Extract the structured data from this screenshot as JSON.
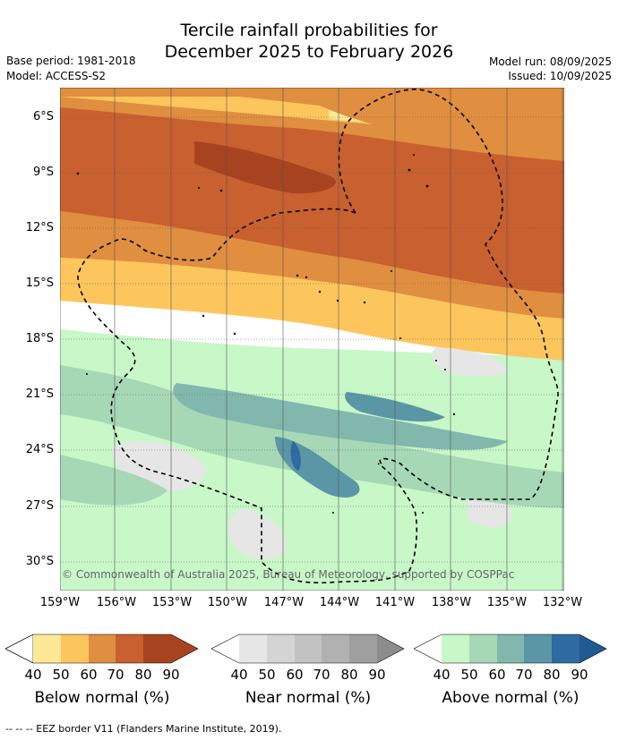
{
  "header": {
    "title_line1": "Tercile rainfall probabilities for",
    "title_line2": "December 2025 to February 2026",
    "base_period": "Base period: 1981-2018",
    "model": "Model: ACCESS-S2",
    "model_run": "Model run: 08/09/2025",
    "issued": "Issued: 10/09/2025"
  },
  "map": {
    "lat_labels": [
      "6°S",
      "9°S",
      "12°S",
      "15°S",
      "18°S",
      "21°S",
      "24°S",
      "27°S",
      "30°S"
    ],
    "lon_labels": [
      "159°W",
      "156°W",
      "153°W",
      "150°W",
      "147°W",
      "144°W",
      "141°W",
      "138°W",
      "135°W",
      "132°W"
    ],
    "copyright": "© Commonwealth of Australia 2025, Bureau of Meteorology, supported by COSPPac",
    "grid": "on"
  },
  "legend": {
    "ticks": [
      "40",
      "50",
      "60",
      "70",
      "80",
      "90"
    ],
    "below": {
      "title": "Below normal (%)",
      "colors": [
        "#ffffff",
        "#fde995",
        "#fcc65d",
        "#e08e40",
        "#c8602f",
        "#a8431f",
        "#a8431f"
      ]
    },
    "near": {
      "title": "Near normal (%)",
      "colors": [
        "#ffffff",
        "#e6e6e6",
        "#d4d4d4",
        "#c2c2c2",
        "#b1b1b1",
        "#9f9f9f",
        "#8c8c8c"
      ]
    },
    "above": {
      "title": "Above normal (%)",
      "colors": [
        "#ffffff",
        "#c8f7c8",
        "#a6d8b6",
        "#82b7ad",
        "#5b96a6",
        "#2f6ba0",
        "#1f5a92"
      ]
    }
  },
  "footer": {
    "eez_note": "-- -- -- EEZ border V11 (Flanders Marine Institute, 2019)."
  }
}
